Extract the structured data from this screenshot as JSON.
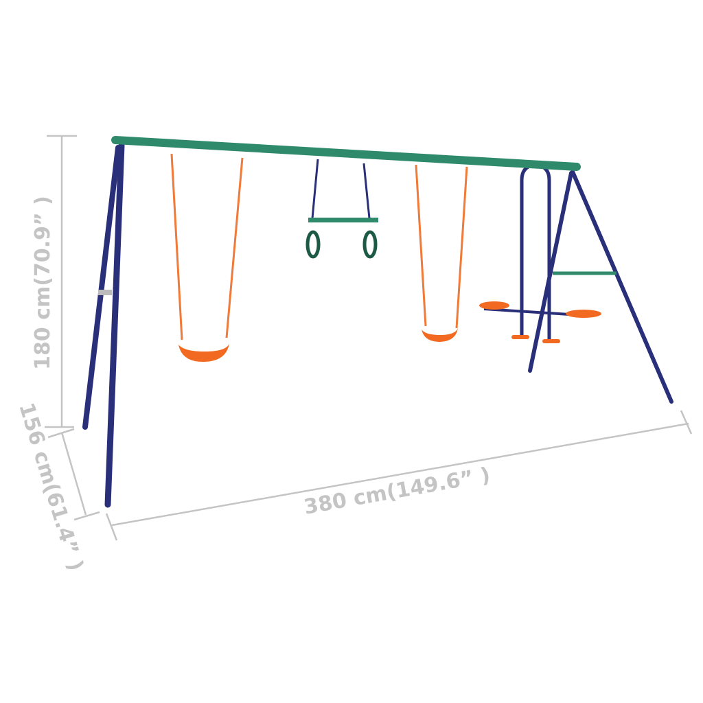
{
  "dimensions": {
    "height_label": "180 cm(70.9” )",
    "depth_label": "156 cm(61.4” )",
    "width_label": "380 cm(149.6” )"
  },
  "colors": {
    "beam": "#2f8a6c",
    "frame": "#2a2f7a",
    "seat": "#f26a21",
    "rope": "#f07a3a",
    "dimension_line": "#c4c4c4"
  }
}
